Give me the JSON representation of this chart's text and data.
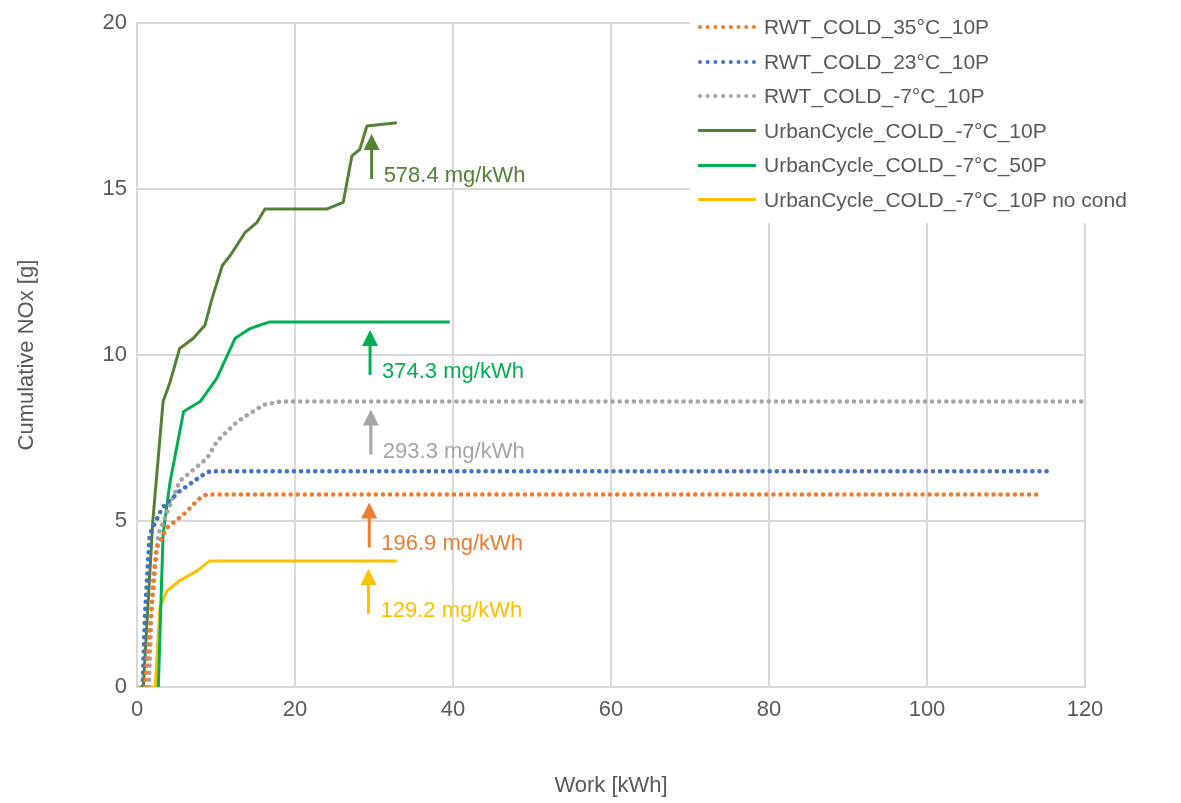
{
  "chart_data": {
    "type": "line",
    "xlabel": "Work [kWh]",
    "ylabel": "Cumulative NOx [g]",
    "xlim": [
      0,
      120
    ],
    "xticks": [
      0,
      20,
      40,
      60,
      80,
      100,
      120
    ],
    "ylim": [
      0,
      20
    ],
    "yticks": [
      0,
      5,
      10,
      15,
      20
    ],
    "grid": true,
    "legend": "top right",
    "marker": "none",
    "series": [
      {
        "name": "RWT_COLD_35°C_10P",
        "color": "#ed7d31",
        "line_style": "dotted",
        "x": [
          1.0,
          2.5,
          3.8,
          5.9,
          8.0,
          8.8,
          114.3
        ],
        "values": [
          0,
          4.2,
          4.8,
          5.2,
          5.7,
          5.8,
          5.8
        ]
      },
      {
        "name": "RWT_COLD_23°C_10P",
        "color": "#4472c4",
        "line_style": "dotted",
        "x": [
          0.7,
          1.0,
          1.6,
          3.2,
          5.4,
          8.4,
          9.2,
          116.0
        ],
        "values": [
          0,
          2.2,
          4.6,
          5.4,
          5.9,
          6.4,
          6.5,
          6.5
        ]
      },
      {
        "name": "RWT_COLD_-7°C_10P",
        "color": "#a5a5a5",
        "line_style": "dotted",
        "x": [
          1.5,
          2.0,
          2.7,
          5.4,
          8.9,
          10.1,
          12.7,
          16.0,
          18.1,
          120
        ],
        "values": [
          0,
          3.2,
          4.6,
          6.2,
          6.9,
          7.4,
          8.0,
          8.5,
          8.6,
          8.6
        ]
      },
      {
        "name": "UrbanCycle_COLD_-7°C_10P",
        "color": "#548235",
        "line_style": "solid",
        "x": [
          0.8,
          1.4,
          2.0,
          3.3,
          4.2,
          5.4,
          7.1,
          8.6,
          9.5,
          10.8,
          11.8,
          13.7,
          15.2,
          16.2,
          24.0,
          26.1,
          27.2,
          28.2,
          29.1,
          32.9
        ],
        "values": [
          0,
          2.5,
          5.0,
          8.6,
          9.2,
          10.2,
          10.5,
          10.9,
          11.7,
          12.7,
          13.0,
          13.7,
          14.0,
          14.4,
          14.4,
          14.6,
          16.0,
          16.2,
          16.9,
          17.0
        ]
      },
      {
        "name": "UrbanCycle_COLD_-7°C_50P",
        "color": "#00b050",
        "line_style": "solid",
        "x": [
          2.7,
          3.3,
          4.2,
          5.9,
          8.0,
          10.1,
          12.4,
          14.3,
          16.8,
          39.6
        ],
        "values": [
          0,
          4.6,
          6.2,
          8.3,
          8.6,
          9.3,
          10.5,
          10.8,
          11.0,
          11.0
        ]
      },
      {
        "name": "UrbanCycle_COLD_-7°C_10P no cond",
        "color": "#ffc000",
        "line_style": "solid",
        "x": [
          0,
          2.3,
          2.9,
          3.8,
          5.4,
          7.6,
          9.2,
          32.9
        ],
        "values": [
          0,
          0,
          2.4,
          2.9,
          3.2,
          3.5,
          3.8,
          3.8
        ]
      }
    ],
    "annotations": [
      {
        "text": "578.4 mg/kWh",
        "x": 29.7,
        "y": 16.9
      },
      {
        "text": "374.3 mg/kWh",
        "x": 29.5,
        "y": 11.0
      },
      {
        "text": "293.3 mg/kWh",
        "x": 29.6,
        "y": 8.6
      },
      {
        "text": "196.9 mg/kWh",
        "x": 29.4,
        "y": 5.8
      },
      {
        "text": "129.2 mg/kWh",
        "x": 29.3,
        "y": 3.8
      }
    ]
  }
}
